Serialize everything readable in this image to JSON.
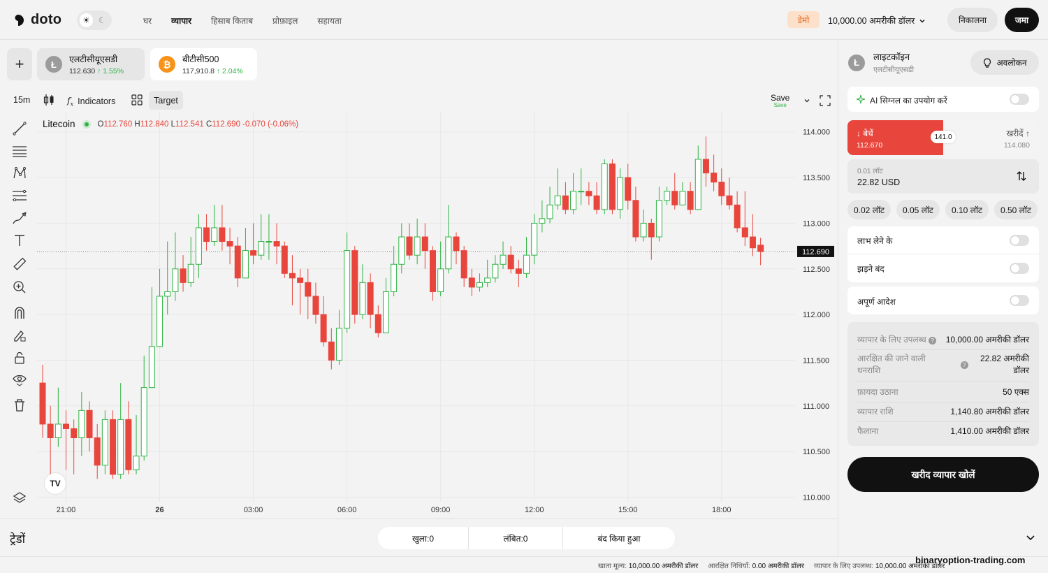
{
  "brand": {
    "name": "doto"
  },
  "nav": {
    "items": [
      "घर",
      "व्यापार",
      "हिसाब किताब",
      "प्रोफ़ाइल",
      "सहायता"
    ],
    "active_index": 1
  },
  "account": {
    "mode_badge": "डेमो",
    "balance": "10,000.00 अमरीकी डॉलर",
    "withdraw": "निकालना",
    "deposit": "जमा"
  },
  "tabs": [
    {
      "name": "एलटीसीयूएसडी",
      "price": "112.630",
      "change": "↑ 1.55%",
      "coin": "Ł",
      "color": "#9b9b9b"
    },
    {
      "name": "बीटीसी500",
      "price": "117,910.8",
      "change": "↑ 2.04%",
      "coin": "₿",
      "color": "#f7931a"
    }
  ],
  "toolbar": {
    "interval": "15m",
    "indicators": "Indicators",
    "target": "Target",
    "save": "Save",
    "save_sub": "Save"
  },
  "legend": {
    "name": "Litecoin",
    "o": "112.760",
    "h": "112.840",
    "l": "112.541",
    "c": "112.690",
    "change": "-0.070 (-0.06%)"
  },
  "chart_data": {
    "type": "candlestick",
    "y_ticks": [
      110.0,
      110.5,
      111.0,
      111.5,
      112.0,
      112.5,
      113.0,
      113.5,
      114.0
    ],
    "y_tick_labels": [
      "110.000",
      "110.500",
      "111.000",
      "111.500",
      "112.000",
      "112.500",
      "113.000",
      "113.500",
      "114.000"
    ],
    "ylim": [
      109.95,
      114.22
    ],
    "x_tick_labels": [
      {
        "i": 3,
        "label": "21:00"
      },
      {
        "i": 15,
        "label": "26",
        "bold": true
      },
      {
        "i": 27,
        "label": "03:00"
      },
      {
        "i": 39,
        "label": "06:00"
      },
      {
        "i": 51,
        "label": "09:00"
      },
      {
        "i": 63,
        "label": "12:00"
      },
      {
        "i": 75,
        "label": "15:00"
      },
      {
        "i": 87,
        "label": "18:00"
      }
    ],
    "current_price": 112.69,
    "current_price_label": "112.690",
    "candles": [
      [
        111.25,
        110.8,
        111.45,
        110.65
      ],
      [
        110.8,
        110.65,
        111.0,
        110.2
      ],
      [
        110.65,
        110.8,
        111.2,
        110.55
      ],
      [
        110.8,
        110.75,
        110.95,
        110.3
      ],
      [
        110.75,
        110.65,
        110.85,
        110.25
      ],
      [
        110.65,
        110.95,
        111.15,
        110.45
      ],
      [
        110.95,
        110.65,
        111.05,
        110.5
      ],
      [
        110.65,
        110.35,
        110.8,
        110.2
      ],
      [
        110.35,
        110.85,
        110.95,
        110.25
      ],
      [
        110.85,
        110.25,
        110.95,
        110.2
      ],
      [
        110.25,
        110.85,
        111.25,
        110.2
      ],
      [
        110.85,
        110.3,
        111.05,
        110.25
      ],
      [
        110.3,
        110.45,
        110.9,
        110.25
      ],
      [
        110.45,
        111.2,
        111.55,
        110.4
      ],
      [
        111.2,
        111.65,
        112.3,
        111.4
      ],
      [
        111.65,
        112.2,
        112.5,
        111.65
      ],
      [
        112.2,
        112.25,
        112.8,
        112.0
      ],
      [
        112.25,
        112.5,
        112.9,
        112.15
      ],
      [
        112.5,
        112.35,
        112.65,
        112.25
      ],
      [
        112.35,
        112.55,
        112.85,
        112.3
      ],
      [
        112.55,
        112.95,
        113.1,
        112.4
      ],
      [
        112.95,
        112.8,
        113.1,
        112.7
      ],
      [
        112.8,
        112.95,
        113.2,
        112.75
      ],
      [
        112.95,
        112.8,
        113.2,
        112.7
      ],
      [
        112.8,
        112.75,
        112.95,
        112.55
      ],
      [
        112.75,
        112.4,
        112.85,
        112.3
      ],
      [
        112.4,
        112.7,
        112.95,
        112.4
      ],
      [
        112.7,
        112.65,
        113.0,
        112.55
      ],
      [
        112.65,
        112.8,
        113.1,
        112.6
      ],
      [
        112.8,
        112.8,
        113.1,
        112.6
      ],
      [
        112.8,
        112.75,
        113.0,
        112.55
      ],
      [
        112.75,
        112.45,
        112.8,
        112.4
      ],
      [
        112.45,
        112.4,
        112.65,
        112.1
      ],
      [
        112.4,
        112.35,
        112.5,
        112.0
      ],
      [
        112.35,
        112.2,
        112.5,
        111.95
      ],
      [
        112.2,
        112.0,
        112.35,
        111.9
      ],
      [
        112.0,
        111.7,
        112.2,
        111.65
      ],
      [
        111.7,
        111.5,
        111.85,
        111.4
      ],
      [
        111.5,
        111.85,
        112.05,
        111.45
      ],
      [
        111.85,
        112.7,
        112.9,
        111.8
      ],
      [
        112.7,
        112.0,
        112.75,
        111.9
      ],
      [
        112.0,
        112.35,
        112.55,
        111.95
      ],
      [
        112.35,
        112.0,
        112.45,
        111.85
      ],
      [
        112.0,
        111.8,
        112.1,
        111.75
      ],
      [
        111.8,
        112.25,
        112.4,
        111.8
      ],
      [
        112.25,
        112.55,
        112.75,
        112.2
      ],
      [
        112.55,
        112.85,
        113.0,
        112.45
      ],
      [
        112.85,
        112.65,
        113.0,
        112.6
      ],
      [
        112.65,
        112.85,
        113.05,
        112.55
      ],
      [
        112.85,
        112.7,
        113.0,
        112.5
      ],
      [
        112.7,
        112.25,
        112.75,
        112.15
      ],
      [
        112.25,
        112.5,
        112.8,
        112.2
      ],
      [
        112.5,
        112.85,
        113.2,
        112.45
      ],
      [
        112.85,
        112.7,
        112.9,
        112.55
      ],
      [
        112.7,
        112.4,
        112.75,
        112.3
      ],
      [
        112.4,
        112.3,
        112.5,
        112.2
      ],
      [
        112.3,
        112.35,
        112.45,
        112.25
      ],
      [
        112.35,
        112.4,
        112.6,
        112.3
      ],
      [
        112.4,
        112.55,
        112.65,
        112.35
      ],
      [
        112.55,
        112.65,
        112.8,
        112.5
      ],
      [
        112.65,
        112.5,
        112.75,
        112.45
      ],
      [
        112.5,
        112.45,
        112.6,
        112.3
      ],
      [
        112.45,
        112.65,
        112.85,
        112.4
      ],
      [
        112.65,
        113.0,
        113.1,
        112.55
      ],
      [
        113.0,
        113.05,
        113.25,
        112.9
      ],
      [
        113.05,
        113.2,
        113.4,
        113.0
      ],
      [
        113.2,
        113.3,
        113.6,
        113.15
      ],
      [
        113.3,
        113.15,
        113.45,
        113.1
      ],
      [
        113.15,
        113.35,
        113.55,
        113.1
      ],
      [
        113.35,
        113.35,
        113.6,
        113.2
      ],
      [
        113.35,
        113.3,
        113.45,
        113.2
      ],
      [
        113.3,
        113.15,
        113.45,
        113.1
      ],
      [
        113.15,
        113.65,
        113.7,
        113.1
      ],
      [
        113.65,
        113.15,
        113.7,
        113.1
      ],
      [
        113.15,
        113.5,
        113.6,
        113.05
      ],
      [
        113.5,
        113.25,
        113.65,
        113.15
      ],
      [
        113.25,
        112.85,
        113.4,
        112.8
      ],
      [
        112.85,
        113.0,
        113.15,
        112.8
      ],
      [
        113.0,
        112.85,
        113.05,
        112.6
      ],
      [
        112.85,
        113.25,
        113.4,
        112.8
      ],
      [
        113.25,
        113.35,
        113.4,
        113.2
      ],
      [
        113.35,
        113.2,
        113.55,
        113.15
      ],
      [
        113.2,
        113.35,
        113.45,
        113.2
      ],
      [
        113.35,
        113.15,
        113.45,
        113.1
      ],
      [
        113.15,
        113.7,
        113.85,
        113.15
      ],
      [
        113.7,
        113.55,
        113.95,
        113.4
      ],
      [
        113.55,
        113.45,
        113.75,
        113.35
      ],
      [
        113.45,
        113.3,
        113.6,
        113.2
      ],
      [
        113.3,
        113.2,
        113.5,
        113.15
      ],
      [
        113.2,
        112.95,
        113.35,
        112.9
      ],
      [
        112.95,
        112.85,
        113.35,
        112.75
      ],
      [
        112.85,
        112.73,
        113.1,
        112.64
      ],
      [
        112.76,
        112.69,
        112.84,
        112.54
      ]
    ]
  },
  "trades": {
    "title": "ट्रेडों",
    "tabs": [
      "खुला:0",
      "लंबित:0",
      "बंद किया हुआ"
    ]
  },
  "footer": {
    "account_value_label": "खाता मूल्य:",
    "account_value": "10,000.00 अमरीकी डॉलर",
    "reserved_label": "आरक्षित निधियाँ:",
    "reserved": "0.00 अमरीकी डॉलर",
    "available_label": "व्यापार के लिए उपलब्ध:",
    "available": "10,000.00 अमरीकी डॉलर",
    "watermark": "binaryoption-trading.com"
  },
  "panel": {
    "asset_name": "लाइटकॉइन",
    "asset_code": "एलटीसीयूएसडी",
    "overview": "अवलोकन",
    "ai_signal": "AI सिग्नल का उपयोग करें",
    "sell_label": "↓ बेचें",
    "sell_price": "112.670",
    "spread": "141.0",
    "buy_label": "खरीदें ↑",
    "buy_price": "114.080",
    "lot_label": "0.01 लॉट",
    "lot_value": "22.82 USD",
    "lot_presets": [
      "0.02 लॉट",
      "0.05 लॉट",
      "0.10 लॉट",
      "0.50 लॉट"
    ],
    "take_profit": "लाभ लेने के",
    "stop_loss": "झड़ने बंद",
    "pending_order": "अपूर्ण आदेश",
    "info": [
      {
        "k": "व्यापार के लिए उपलब्ध",
        "v": "10,000.00 अमरीकी डॉलर"
      },
      {
        "k": "आरक्षित की जाने वाली धनराशि",
        "v": "22.82 अमरीकी डॉलर"
      },
      {
        "k": "फ़ायदा उठाना",
        "v": "50 एक्स"
      },
      {
        "k": "व्यापार राशि",
        "v": "1,140.80 अमरीकी डॉलर"
      },
      {
        "k": "फैलाना",
        "v": "1,410.00 अमरीकी डॉलर"
      }
    ],
    "open_trade": "खरीद व्यापार खोलें"
  },
  "colors": {
    "up": "#2fb344",
    "down": "#e8453c",
    "accent": "#111111",
    "demo": "#e86b23"
  }
}
